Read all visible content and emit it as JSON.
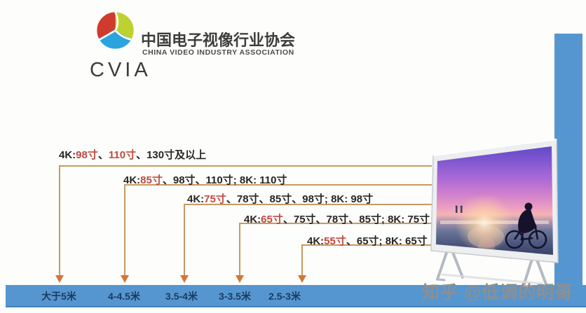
{
  "logo": {
    "org_cn": "中国电子视像行业协会",
    "org_en": "CHINA VIDEO INDUSTRY ASSOCIATION",
    "abbr": "CVIA"
  },
  "display_rows": [
    {
      "segments": [
        {
          "t": "4K:",
          "red": false
        },
        {
          "t": "98寸",
          "red": true
        },
        {
          "t": "、",
          "red": false
        },
        {
          "t": "110寸",
          "red": true
        },
        {
          "t": "、130寸及以上",
          "red": false
        }
      ]
    },
    {
      "segments": [
        {
          "t": "4K:",
          "red": false
        },
        {
          "t": "85寸",
          "red": true
        },
        {
          "t": "、98寸、110寸; 8K: 110寸",
          "red": false
        }
      ]
    },
    {
      "segments": [
        {
          "t": "4K:",
          "red": false
        },
        {
          "t": "75寸",
          "red": true
        },
        {
          "t": "、78寸、85寸、98寸; 8K: 98寸",
          "red": false
        }
      ]
    },
    {
      "segments": [
        {
          "t": "4K:",
          "red": false
        },
        {
          "t": "65寸",
          "red": true
        },
        {
          "t": "、75寸、78寸、85寸; 8K: 75寸",
          "red": false
        }
      ]
    },
    {
      "segments": [
        {
          "t": "4K:",
          "red": false
        },
        {
          "t": "55寸",
          "red": true
        },
        {
          "t": "、65寸; 8K: 65寸",
          "red": false
        }
      ]
    }
  ],
  "axis": {
    "labels": [
      "大于5米",
      "4-4.5米",
      "3.5-4米",
      "3-3.5米",
      "2.5-3米"
    ]
  },
  "chart_data": {
    "type": "table",
    "categories": [
      "大于5米",
      "4-4.5米",
      "3.5-4米",
      "3-3.5米",
      "2.5-3米"
    ],
    "series": [
      {
        "name": "4K",
        "values": [
          [
            "98寸",
            "110寸",
            "130寸及以上"
          ],
          [
            "85寸",
            "98寸",
            "110寸"
          ],
          [
            "75寸",
            "78寸",
            "85寸",
            "98寸"
          ],
          [
            "65寸",
            "75寸",
            "78寸",
            "85寸"
          ],
          [
            "55寸",
            "65寸"
          ]
        ]
      },
      {
        "name": "8K",
        "values": [
          [],
          [
            "110寸"
          ],
          [
            "98寸"
          ],
          [
            "75寸"
          ],
          [
            "65寸"
          ]
        ]
      }
    ],
    "highlighted_per_row": [
      [
        "98寸",
        "110寸"
      ],
      [
        "85寸"
      ],
      [
        "75寸"
      ],
      [
        "65寸"
      ],
      [
        "55寸"
      ]
    ],
    "legend_position": "none",
    "grid": false
  },
  "watermark": {
    "text": "知乎 @低调的明哥"
  },
  "colors": {
    "highlight_red": "#bf4a40",
    "bracket_tan": "#c79a63",
    "arrow_orange": "#d4753a",
    "bar_blue": "#5596d0",
    "bar_text_navy": "#1c3a5e"
  }
}
